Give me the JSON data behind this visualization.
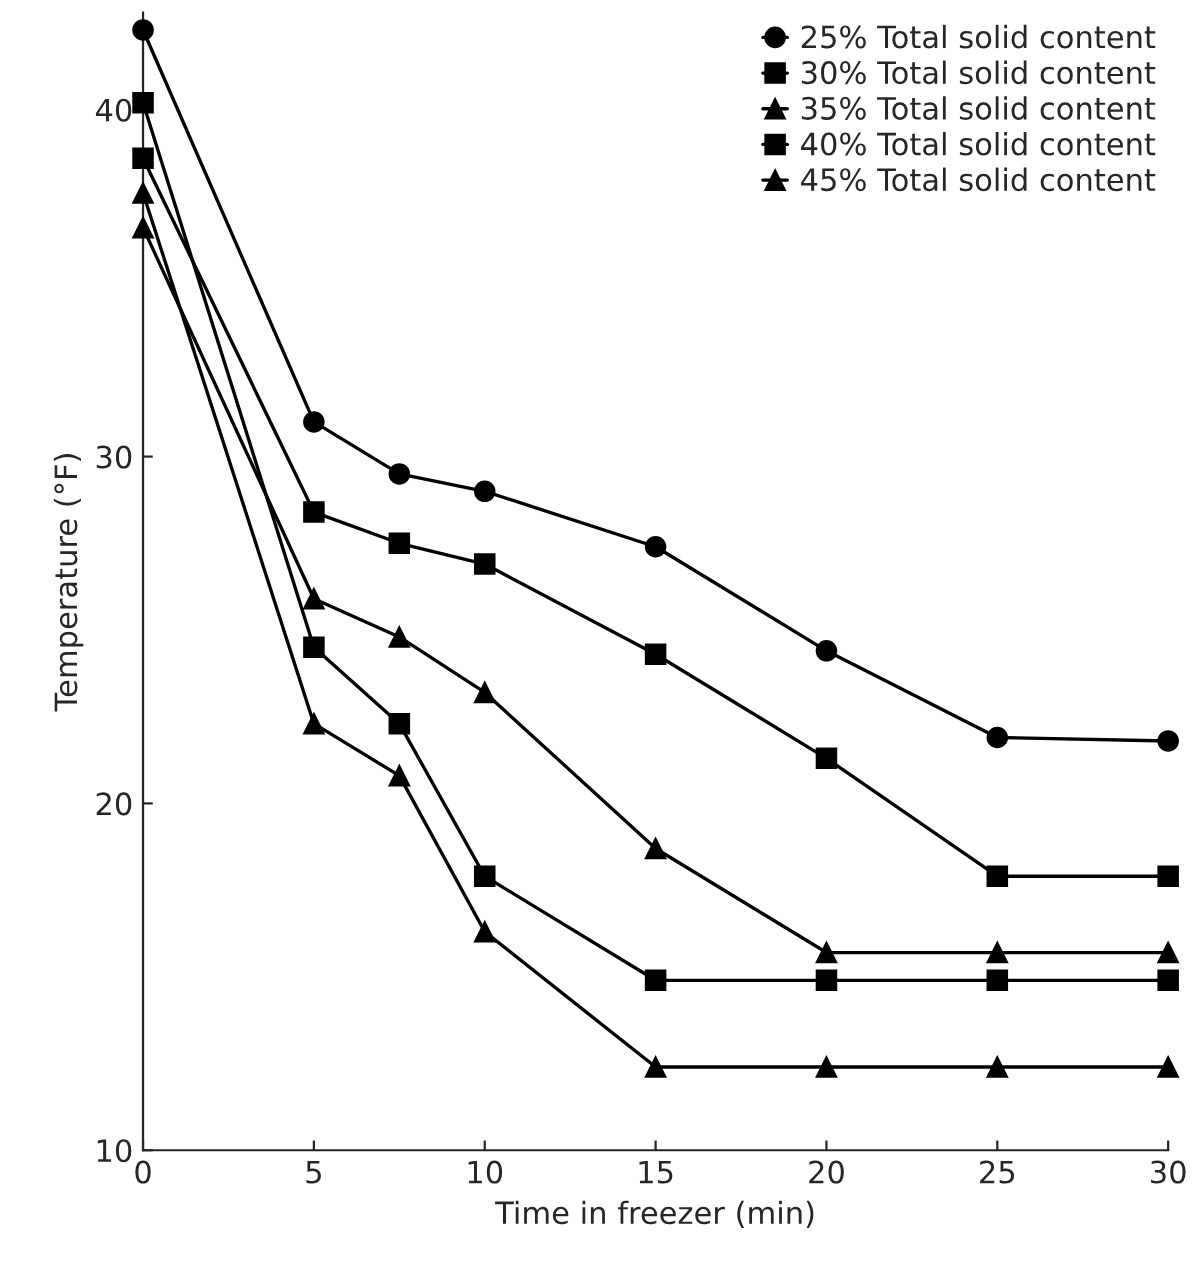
{
  "chart_data": {
    "type": "line",
    "xlabel": "Time in freezer (min)",
    "ylabel": "Temperature (°F)",
    "xlim": [
      0,
      30
    ],
    "xticks": [
      0,
      5,
      10,
      15,
      20,
      25,
      30
    ],
    "ylim": [
      10,
      42.8
    ],
    "yticks": [
      10,
      20,
      30,
      40
    ],
    "grid": false,
    "legend": "top right",
    "line_style": "solid",
    "series": [
      {
        "name": "25% Total solid content",
        "color": "#000000",
        "marker": "circle",
        "x": [
          0,
          5,
          7.5,
          10,
          15,
          20,
          25,
          30
        ],
        "values": [
          42.3,
          31.0,
          29.5,
          29.0,
          27.4,
          24.4,
          21.9,
          21.8
        ]
      },
      {
        "name": "30% Total solid content",
        "color": "#000000",
        "marker": "square",
        "x": [
          0,
          5,
          7.5,
          10,
          15,
          20,
          25,
          30
        ],
        "values": [
          38.6,
          28.4,
          27.5,
          26.9,
          24.3,
          21.3,
          17.9,
          17.9
        ]
      },
      {
        "name": "35% Total solid content",
        "color": "#000000",
        "marker": "triangle",
        "x": [
          0,
          5,
          7.5,
          10,
          15,
          20,
          25,
          30
        ],
        "values": [
          36.6,
          25.9,
          24.8,
          23.2,
          18.7,
          15.7,
          15.7,
          15.7
        ]
      },
      {
        "name": "40% Total solid content",
        "color": "#000000",
        "marker": "square",
        "x": [
          0,
          5,
          7.5,
          10,
          15,
          20,
          25,
          30
        ],
        "values": [
          40.2,
          24.5,
          22.3,
          17.9,
          14.9,
          14.9,
          14.9,
          14.9
        ]
      },
      {
        "name": "45% Total solid content",
        "color": "#000000",
        "marker": "triangle",
        "x": [
          0,
          5,
          7.5,
          10,
          15,
          20,
          25,
          30
        ],
        "values": [
          37.6,
          22.3,
          20.8,
          16.3,
          12.4,
          12.4,
          12.4,
          12.4
        ]
      }
    ]
  }
}
